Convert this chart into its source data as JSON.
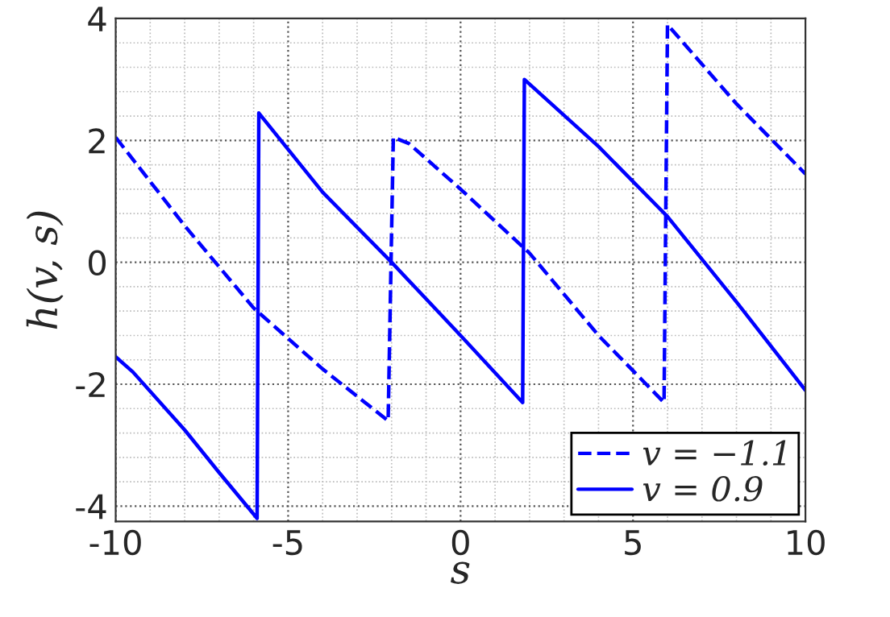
{
  "chart_data": {
    "type": "line",
    "xlabel": "s",
    "ylabel": "h(v, s)",
    "xlim": [
      -10,
      10
    ],
    "ylim": [
      -4.25,
      4
    ],
    "xticks": [
      -10,
      -5,
      0,
      5,
      10
    ],
    "yticks": [
      -4,
      -2,
      0,
      2,
      4
    ],
    "grid": true,
    "legend": "bottom right",
    "marker": "none",
    "series": [
      {
        "name": "v = −1.1",
        "color": "#0000ff",
        "line_style": "dashed",
        "x": [
          -10,
          -8,
          -6,
          -4,
          -2.1,
          -1.95,
          -1.5,
          0,
          2,
          4,
          5.9,
          6.0,
          8,
          10
        ],
        "values": [
          2.05,
          0.6,
          -0.75,
          -1.75,
          -2.6,
          2.05,
          1.95,
          1.2,
          0.15,
          -1.2,
          -2.3,
          3.9,
          2.6,
          1.45
        ]
      },
      {
        "name": "v = 0.9",
        "color": "#0000ff",
        "line_style": "solid",
        "x": [
          -10,
          -9.5,
          -8,
          -7,
          -5.9,
          -5.85,
          -4,
          -2,
          0,
          1.8,
          1.85,
          4,
          6,
          8,
          10
        ],
        "values": [
          -1.55,
          -1.8,
          -2.75,
          -3.45,
          -4.2,
          2.45,
          1.15,
          0.0,
          -1.2,
          -2.3,
          3.0,
          1.9,
          0.75,
          -0.65,
          -2.1
        ]
      }
    ]
  }
}
